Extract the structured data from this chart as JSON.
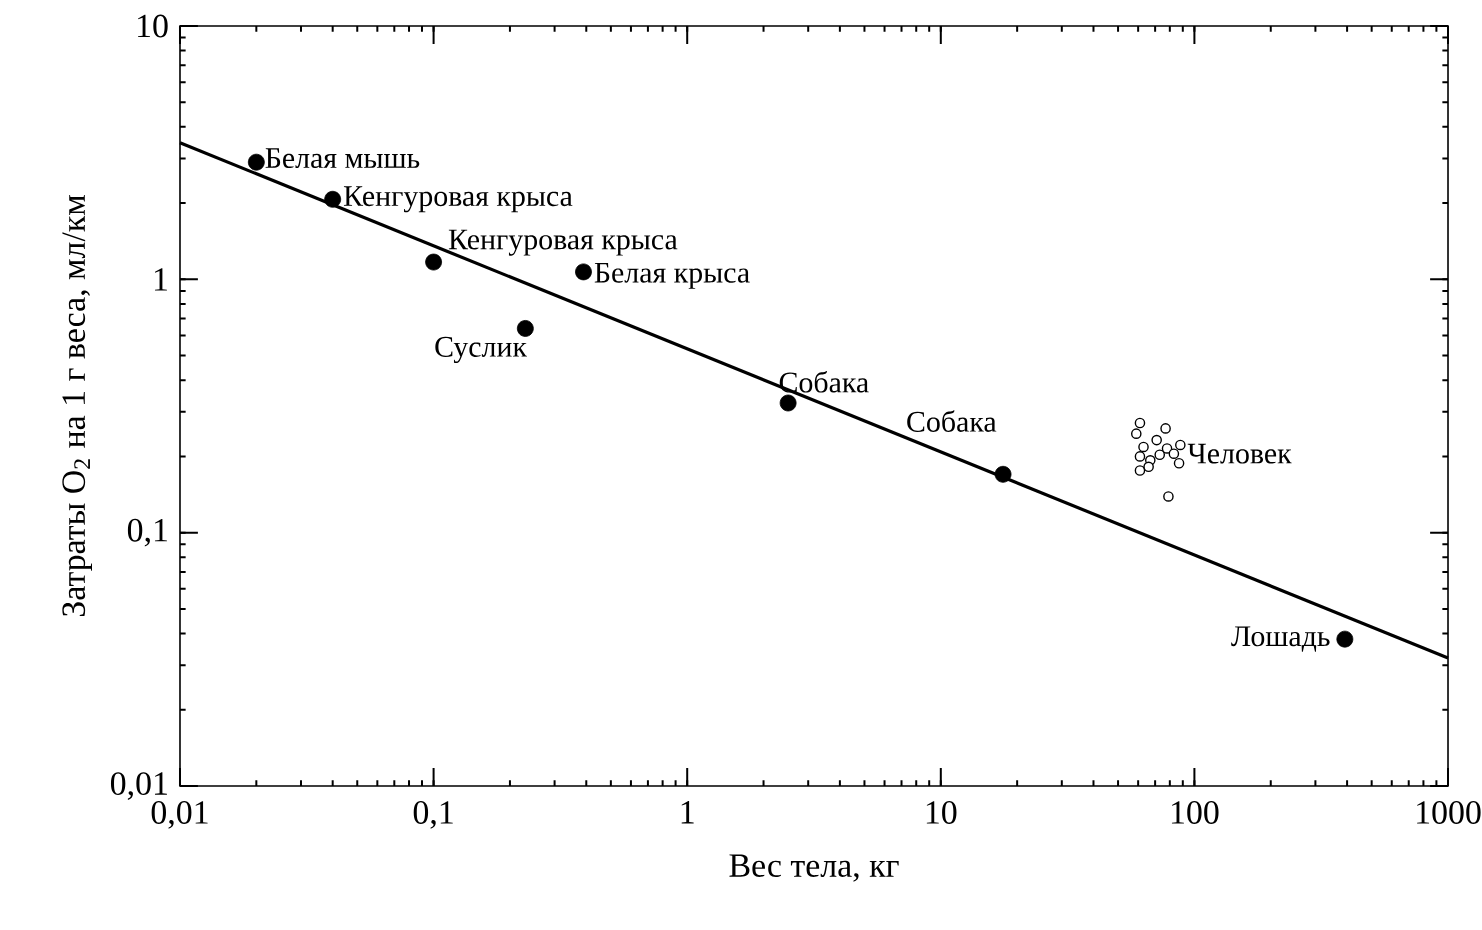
{
  "chart_data": {
    "type": "scatter",
    "xlabel": "Вес тела, кг",
    "ylabel": "Затраты O$_{2}$ на 1 г веса, мл/км",
    "log": "xy",
    "grid": false,
    "xlim": [
      0.01,
      1000
    ],
    "ylim": [
      0.01,
      10
    ],
    "xticks": [
      {
        "value": 0.01,
        "label": "0,01"
      },
      {
        "value": 0.1,
        "label": "0,1"
      },
      1,
      10,
      100,
      1000
    ],
    "yticks": [
      {
        "value": 0.01,
        "label": "0,01"
      },
      {
        "value": 0.1,
        "label": "0,1"
      },
      1,
      10
    ],
    "series": [
      {
        "marker": "circle",
        "color": "#000000",
        "x": [
          0.02,
          0.04,
          0.1,
          0.39,
          0.23,
          2.5,
          17.6,
          392
        ],
        "values": [
          2.9,
          2.07,
          1.17,
          1.07,
          0.64,
          0.325,
          0.17,
          0.038
        ]
      },
      {
        "name": "Человек",
        "color": "#ffffff",
        "marker": "circle",
        "x": [
          61,
          77,
          59,
          88,
          63,
          71,
          78,
          61,
          67,
          73,
          83,
          87,
          61,
          66,
          79
        ],
        "values": [
          0.271,
          0.258,
          0.246,
          0.222,
          0.218,
          0.232,
          0.215,
          0.2,
          0.193,
          0.203,
          0.205,
          0.188,
          0.176,
          0.182,
          0.139
        ]
      },
      {
        "type": "line",
        "color": "#000000",
        "x": [
          0.01,
          1000
        ],
        "values": [
          3.46,
          0.032
        ]
      }
    ],
    "annotations": [
      {
        "text": "Белая мышь",
        "x": 0.02,
        "y": 2.9
      },
      {
        "text": "Кенгуровая крыса",
        "x": 0.04,
        "y": 2.07
      },
      {
        "text": "Кенгуровая крыса",
        "x": 0.1,
        "y": 1.17
      },
      {
        "text": "Белая крыса",
        "x": 0.39,
        "y": 1.07
      },
      {
        "text": "Суслик",
        "x": 0.23,
        "y": 0.64
      },
      {
        "text": "Собака",
        "x": 2.5,
        "y": 0.325
      },
      {
        "text": "Собака",
        "x": 17.6,
        "y": 0.17
      },
      {
        "text": "Лошадь",
        "x": 392,
        "y": 0.038
      }
    ]
  }
}
